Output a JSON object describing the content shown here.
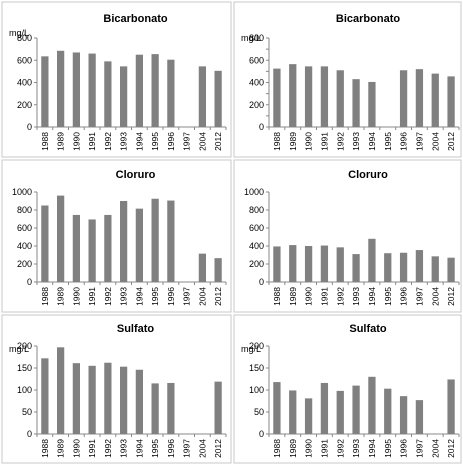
{
  "chart_data": [
    {
      "type": "bar",
      "title": "Bicarbonato",
      "ylabel": "mg/L",
      "ylim": [
        0,
        800
      ],
      "yticks": [
        0,
        200,
        400,
        600,
        800
      ],
      "categories": [
        "1988",
        "1989",
        "1990",
        "1991",
        "1992",
        "1993",
        "1994",
        "1995",
        "1996",
        "1997",
        "2004",
        "2012"
      ],
      "values": [
        635,
        685,
        670,
        660,
        590,
        545,
        650,
        655,
        605,
        null,
        545,
        505
      ],
      "bar_color": "#808080",
      "grid": false
    },
    {
      "type": "bar",
      "title": "Bicarbonato",
      "ylabel": "mg/L",
      "ylim": [
        0,
        800
      ],
      "yticks": [
        0,
        100,
        200,
        300,
        400,
        500,
        600,
        700,
        800
      ],
      "ytick_labels": [
        "0",
        "",
        "200",
        "",
        "400",
        "",
        "600",
        "",
        "800"
      ],
      "categories": [
        "1988",
        "1989",
        "1990",
        "1991",
        "1992",
        "1993",
        "1994",
        "1995",
        "1996",
        "1997",
        "2004",
        "2012"
      ],
      "values": [
        525,
        565,
        545,
        545,
        510,
        430,
        405,
        null,
        510,
        520,
        480,
        455
      ],
      "bar_color": "#808080",
      "grid": false
    },
    {
      "type": "bar",
      "title": "Cloruro",
      "ylabel": "",
      "ylim": [
        0,
        1000
      ],
      "yticks": [
        0,
        200,
        400,
        600,
        800,
        1000
      ],
      "categories": [
        "1988",
        "1989",
        "1990",
        "1991",
        "1992",
        "1993",
        "1994",
        "1995",
        "1996",
        "1997",
        "2004",
        "2012"
      ],
      "values": [
        850,
        960,
        745,
        695,
        745,
        900,
        815,
        925,
        905,
        null,
        315,
        265
      ],
      "bar_color": "#808080",
      "grid": false
    },
    {
      "type": "bar",
      "title": "Cloruro",
      "ylabel": "",
      "ylim": [
        0,
        1000
      ],
      "yticks": [
        0,
        200,
        400,
        600,
        800,
        1000
      ],
      "categories": [
        "1988",
        "1989",
        "1990",
        "1991",
        "1992",
        "1993",
        "1994",
        "1995",
        "1996",
        "1997",
        "2004",
        "2012"
      ],
      "values": [
        395,
        410,
        400,
        405,
        385,
        310,
        480,
        320,
        325,
        355,
        285,
        270
      ],
      "bar_color": "#808080",
      "grid": false
    },
    {
      "type": "bar",
      "title": "Sulfato",
      "ylabel": "mg/L",
      "ylim": [
        0,
        200
      ],
      "yticks": [
        0,
        50,
        100,
        150,
        200
      ],
      "categories": [
        "1988",
        "1989",
        "1990",
        "1991",
        "1992",
        "1993",
        "1994",
        "1995",
        "1996",
        "1997",
        "2004",
        "2012"
      ],
      "values": [
        172,
        197,
        161,
        155,
        162,
        153,
        146,
        115,
        116,
        null,
        null,
        119
      ],
      "bar_color": "#808080",
      "grid": false
    },
    {
      "type": "bar",
      "title": "Sulfato",
      "ylabel": "mg/L",
      "ylim": [
        0,
        200
      ],
      "yticks": [
        0,
        50,
        100,
        150,
        200
      ],
      "categories": [
        "1988",
        "1989",
        "1990",
        "1991",
        "1992",
        "1993",
        "1994",
        "1995",
        "1996",
        "1997",
        "2004",
        "2012"
      ],
      "values": [
        118,
        99,
        81,
        116,
        98,
        110,
        130,
        103,
        86,
        77,
        null,
        124
      ],
      "bar_color": "#808080",
      "grid": false
    }
  ]
}
